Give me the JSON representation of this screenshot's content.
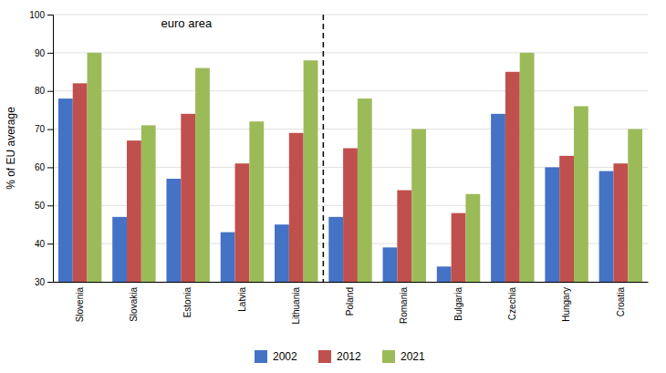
{
  "chart_data": {
    "type": "bar",
    "categories": [
      "Slovenia",
      "Slovakia",
      "Estonia",
      "Latvia",
      "Lithuania",
      "Poland",
      "Romania",
      "Bulgaria",
      "Czechia",
      "Hungary",
      "Croatia"
    ],
    "series": [
      {
        "name": "2002",
        "color": "#4472C4",
        "values": [
          78,
          47,
          57,
          43,
          45,
          47,
          39,
          34,
          74,
          60,
          59
        ]
      },
      {
        "name": "2012",
        "color": "#C0504D",
        "values": [
          82,
          67,
          74,
          61,
          69,
          65,
          54,
          48,
          85,
          63,
          61
        ]
      },
      {
        "name": "2021",
        "color": "#9BBB59",
        "values": [
          90,
          71,
          86,
          72,
          88,
          78,
          70,
          53,
          90,
          76,
          70
        ]
      }
    ],
    "y_label": "% of EU average",
    "ylim": [
      30,
      100
    ],
    "yticks": [
      30,
      40,
      50,
      60,
      70,
      80,
      90,
      100
    ],
    "annotations": [
      "euro area"
    ],
    "grid": true,
    "legend": "bottom"
  }
}
